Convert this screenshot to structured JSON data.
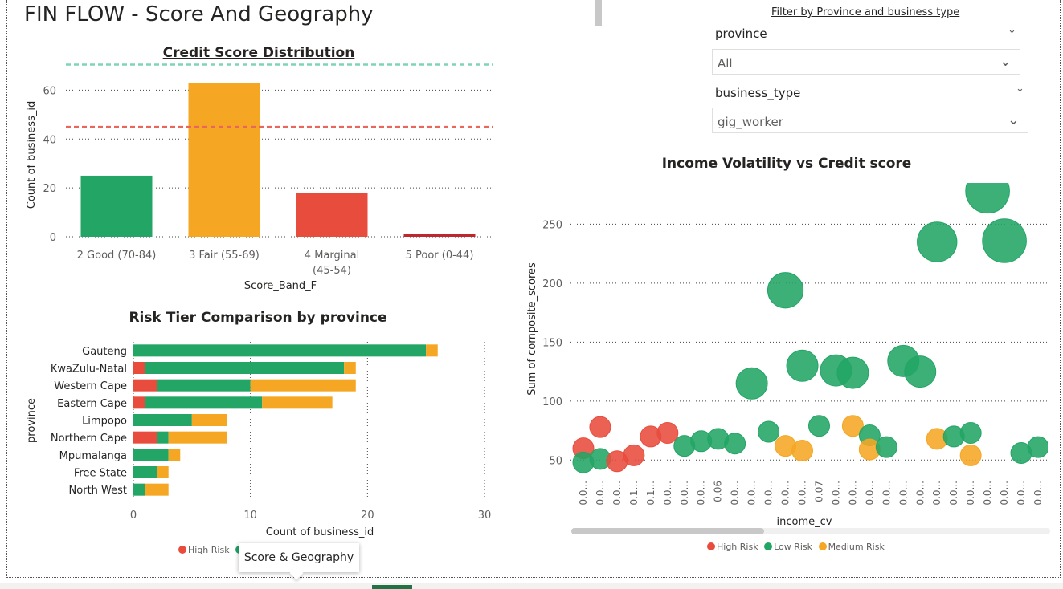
{
  "page": {
    "title": "FIN FLOW - Score And Geography"
  },
  "filter": {
    "caption": "Filter by Province and business type",
    "province": {
      "label": "province",
      "value": "All"
    },
    "business_type": {
      "label": "business_type",
      "value": "gig_worker"
    }
  },
  "tooltip": {
    "label": "Score & Geography"
  },
  "legend": {
    "items": [
      {
        "label": "High Risk",
        "color": "#e84c3d"
      },
      {
        "label": "Low Risk",
        "color": "#22a565"
      },
      {
        "label": "Medium Risk",
        "color": "#f5a623"
      }
    ]
  },
  "chart_data": [
    {
      "id": "credit_score",
      "type": "bar",
      "title": "Credit Score Distribution",
      "xlabel": "Score_Band_F",
      "ylabel": "Count of business_id",
      "categories": [
        "2 Good (70-84)",
        "3 Fair (55-69)",
        "4 Marginal (45-54)",
        "5 Poor (0-44)"
      ],
      "values": [
        25,
        63,
        18,
        1
      ],
      "colors": [
        "#22a565",
        "#f5a623",
        "#e84c3d",
        "#c0272d"
      ],
      "ylim": [
        0,
        70
      ],
      "yticks": [
        0,
        20,
        40,
        60
      ],
      "reference_lines": [
        {
          "value": 70.5,
          "color": "#7fd3b9"
        },
        {
          "value": 45,
          "color": "#e8665c"
        }
      ],
      "grid": true
    },
    {
      "id": "risk_tier",
      "type": "bar",
      "orientation": "horizontal",
      "stacked": true,
      "title": "Risk Tier Comparison by province",
      "xlabel": "Count of business_id",
      "ylabel": "province",
      "categories": [
        "Gauteng",
        "KwaZulu-Natal",
        "Western Cape",
        "Eastern Cape",
        "Limpopo",
        "Northern Cape",
        "Mpumalanga",
        "Free State",
        "North West"
      ],
      "series": [
        {
          "name": "High Risk",
          "color": "#e84c3d",
          "values": [
            0,
            1,
            2,
            1,
            0,
            2,
            0,
            0,
            0
          ]
        },
        {
          "name": "Low Risk",
          "color": "#22a565",
          "values": [
            25,
            17,
            8,
            10,
            5,
            1,
            3,
            2,
            1
          ]
        },
        {
          "name": "Medium Risk",
          "color": "#f5a623",
          "values": [
            1,
            1,
            9,
            6,
            3,
            5,
            1,
            1,
            2
          ]
        }
      ],
      "xlim": [
        0,
        30
      ],
      "xticks": [
        0,
        10,
        20,
        30
      ],
      "legend": "bottom"
    },
    {
      "id": "volatility",
      "type": "scatter",
      "title": "Income Volatility vs Credit score",
      "xlabel": "income_cv",
      "ylabel": "Sum of composite_scores",
      "x_tick_labels": [
        "0.0...",
        "0.0...",
        "0.0...",
        "0.1...",
        "0.1...",
        "0.0...",
        "0.0...",
        "0.0...",
        "0.06",
        "0.0...",
        "0.0...",
        "0.0...",
        "0.0...",
        "0.0...",
        "0.07",
        "0.0...",
        "0.0...",
        "0.0...",
        "0.0...",
        "0.0...",
        "0.0...",
        "0.0...",
        "0.0...",
        "0.0...",
        "0.0...",
        "0.0...",
        "0.0...",
        "0.0..."
      ],
      "ylim": [
        40,
        285
      ],
      "yticks": [
        50,
        100,
        150,
        200,
        250
      ],
      "points": [
        {
          "x": 0,
          "y": 60,
          "tier": "High Risk",
          "size": 1
        },
        {
          "x": 0,
          "y": 48,
          "tier": "Low Risk",
          "size": 1
        },
        {
          "x": 1,
          "y": 51,
          "tier": "Low Risk",
          "size": 1
        },
        {
          "x": 1,
          "y": 78,
          "tier": "High Risk",
          "size": 1
        },
        {
          "x": 2,
          "y": 49,
          "tier": "High Risk",
          "size": 1
        },
        {
          "x": 3,
          "y": 54,
          "tier": "High Risk",
          "size": 1
        },
        {
          "x": 4,
          "y": 70,
          "tier": "High Risk",
          "size": 1
        },
        {
          "x": 5,
          "y": 73,
          "tier": "High Risk",
          "size": 1
        },
        {
          "x": 6,
          "y": 62,
          "tier": "Low Risk",
          "size": 1
        },
        {
          "x": 7,
          "y": 66,
          "tier": "Low Risk",
          "size": 1
        },
        {
          "x": 8,
          "y": 68,
          "tier": "Low Risk",
          "size": 1
        },
        {
          "x": 9,
          "y": 64,
          "tier": "Low Risk",
          "size": 1
        },
        {
          "x": 10,
          "y": 115,
          "tier": "Low Risk",
          "size": 1.5
        },
        {
          "x": 11,
          "y": 74,
          "tier": "Low Risk",
          "size": 1
        },
        {
          "x": 12,
          "y": 62,
          "tier": "Medium Risk",
          "size": 1
        },
        {
          "x": 12,
          "y": 194,
          "tier": "Low Risk",
          "size": 1.7
        },
        {
          "x": 13,
          "y": 130,
          "tier": "Low Risk",
          "size": 1.5
        },
        {
          "x": 13,
          "y": 58,
          "tier": "Medium Risk",
          "size": 1
        },
        {
          "x": 14,
          "y": 79,
          "tier": "Low Risk",
          "size": 1
        },
        {
          "x": 15,
          "y": 126,
          "tier": "Low Risk",
          "size": 1.5
        },
        {
          "x": 16,
          "y": 124,
          "tier": "Low Risk",
          "size": 1.5
        },
        {
          "x": 16,
          "y": 79,
          "tier": "Medium Risk",
          "size": 1
        },
        {
          "x": 17,
          "y": 71,
          "tier": "Low Risk",
          "size": 1
        },
        {
          "x": 17,
          "y": 59,
          "tier": "Medium Risk",
          "size": 1
        },
        {
          "x": 18,
          "y": 61,
          "tier": "Low Risk",
          "size": 1
        },
        {
          "x": 19,
          "y": 134,
          "tier": "Low Risk",
          "size": 1.5
        },
        {
          "x": 20,
          "y": 125,
          "tier": "Low Risk",
          "size": 1.5
        },
        {
          "x": 21,
          "y": 235,
          "tier": "Low Risk",
          "size": 1.9
        },
        {
          "x": 21,
          "y": 68,
          "tier": "Medium Risk",
          "size": 1
        },
        {
          "x": 22,
          "y": 70,
          "tier": "Low Risk",
          "size": 1
        },
        {
          "x": 23,
          "y": 73,
          "tier": "Low Risk",
          "size": 1
        },
        {
          "x": 23,
          "y": 54,
          "tier": "Medium Risk",
          "size": 1
        },
        {
          "x": 24,
          "y": 278,
          "tier": "Low Risk",
          "size": 2.1
        },
        {
          "x": 25,
          "y": 236,
          "tier": "Low Risk",
          "size": 2.1
        },
        {
          "x": 26,
          "y": 56,
          "tier": "Low Risk",
          "size": 1
        },
        {
          "x": 27,
          "y": 61,
          "tier": "Low Risk",
          "size": 1
        }
      ],
      "legend": "bottom"
    }
  ]
}
